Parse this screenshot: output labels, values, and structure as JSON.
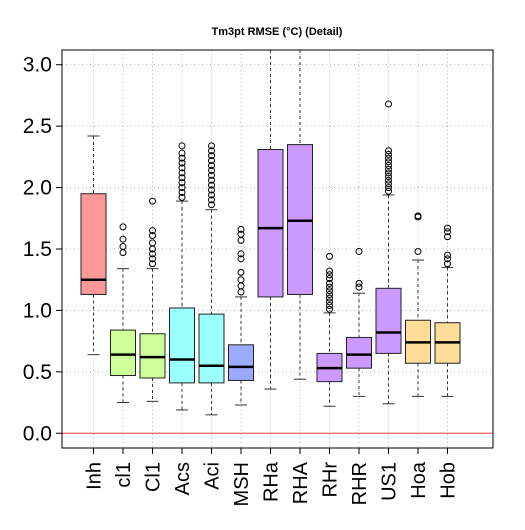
{
  "chart_data": {
    "type": "box",
    "title": "Tm3pt RMSE (°C) (Detail)",
    "xlabel": "",
    "ylabel": "",
    "ylim": [
      -0.12,
      3.12
    ],
    "yticks": [
      "0.0",
      "0.5",
      "1.0",
      "1.5",
      "2.0",
      "2.5",
      "3.0"
    ],
    "grid": true,
    "reference_line": {
      "y": 0.0,
      "color": "#e06666"
    },
    "categories": [
      "Inh",
      "cl1",
      "Cl1",
      "Acs",
      "Aci",
      "MSH",
      "RHa",
      "RHA",
      "RHr",
      "RHR",
      "US1",
      "Hoa",
      "Hob"
    ],
    "colors": [
      "#ff9999",
      "#ccff99",
      "#ccff99",
      "#99ffff",
      "#99ffff",
      "#99aaff",
      "#cc99ff",
      "#cc99ff",
      "#cc99ff",
      "#cc99ff",
      "#cc99ff",
      "#ffdd99",
      "#ffdd99"
    ],
    "boxes": [
      {
        "name": "Inh",
        "whisker_low": 0.64,
        "q1": 1.13,
        "median": 1.25,
        "q3": 1.95,
        "whisker_high": 2.42,
        "outliers": []
      },
      {
        "name": "cl1",
        "whisker_low": 0.25,
        "q1": 0.47,
        "median": 0.64,
        "q3": 0.84,
        "whisker_high": 1.34,
        "outliers": [
          1.47,
          1.52,
          1.58,
          1.68
        ]
      },
      {
        "name": "Cl1",
        "whisker_low": 0.26,
        "q1": 0.45,
        "median": 0.62,
        "q3": 0.81,
        "whisker_high": 1.34,
        "outliers": [
          1.38,
          1.42,
          1.46,
          1.5,
          1.55,
          1.61,
          1.65,
          1.89
        ]
      },
      {
        "name": "Acs",
        "whisker_low": 0.19,
        "q1": 0.41,
        "median": 0.6,
        "q3": 1.02,
        "whisker_high": 1.89,
        "outliers": [
          1.92,
          1.96,
          2.0,
          2.04,
          2.08,
          2.12,
          2.16,
          2.2,
          2.24,
          2.28,
          2.34
        ]
      },
      {
        "name": "Aci",
        "whisker_low": 0.15,
        "q1": 0.41,
        "median": 0.55,
        "q3": 0.97,
        "whisker_high": 1.82,
        "outliers": [
          1.86,
          1.9,
          1.94,
          1.98,
          2.02,
          2.06,
          2.1,
          2.14,
          2.18,
          2.22,
          2.26,
          2.3,
          2.34
        ]
      },
      {
        "name": "MSH",
        "whisker_low": 0.23,
        "q1": 0.43,
        "median": 0.54,
        "q3": 0.72,
        "whisker_high": 1.11,
        "outliers": [
          1.15,
          1.2,
          1.25,
          1.31,
          1.42,
          1.46,
          1.57,
          1.62,
          1.66
        ]
      },
      {
        "name": "RHa",
        "whisker_low": 0.36,
        "q1": 1.11,
        "median": 1.67,
        "q3": 2.31,
        "whisker_high": 3.2,
        "outliers": []
      },
      {
        "name": "RHA",
        "whisker_low": 0.44,
        "q1": 1.13,
        "median": 1.73,
        "q3": 2.35,
        "whisker_high": 3.2,
        "outliers": []
      },
      {
        "name": "RHr",
        "whisker_low": 0.22,
        "q1": 0.42,
        "median": 0.53,
        "q3": 0.65,
        "whisker_high": 0.98,
        "outliers": [
          1.01,
          1.04,
          1.07,
          1.1,
          1.13,
          1.16,
          1.19,
          1.22,
          1.26,
          1.29,
          1.32,
          1.44
        ]
      },
      {
        "name": "RHR",
        "whisker_low": 0.3,
        "q1": 0.53,
        "median": 0.64,
        "q3": 0.78,
        "whisker_high": 1.14,
        "outliers": [
          1.19,
          1.22,
          1.48
        ]
      },
      {
        "name": "US1",
        "whisker_low": 0.24,
        "q1": 0.65,
        "median": 0.82,
        "q3": 1.18,
        "whisker_high": 1.94,
        "outliers": [
          1.97,
          2.0,
          2.03,
          2.06,
          2.09,
          2.12,
          2.15,
          2.18,
          2.21,
          2.24,
          2.27,
          2.3,
          2.68
        ]
      },
      {
        "name": "Hoa",
        "whisker_low": 0.3,
        "q1": 0.57,
        "median": 0.74,
        "q3": 0.92,
        "whisker_high": 1.41,
        "outliers": [
          1.48,
          1.76,
          1.77
        ]
      },
      {
        "name": "Hob",
        "whisker_low": 0.3,
        "q1": 0.57,
        "median": 0.74,
        "q3": 0.9,
        "whisker_high": 1.35,
        "outliers": [
          1.38,
          1.42,
          1.45,
          1.6,
          1.64,
          1.67
        ]
      }
    ]
  }
}
